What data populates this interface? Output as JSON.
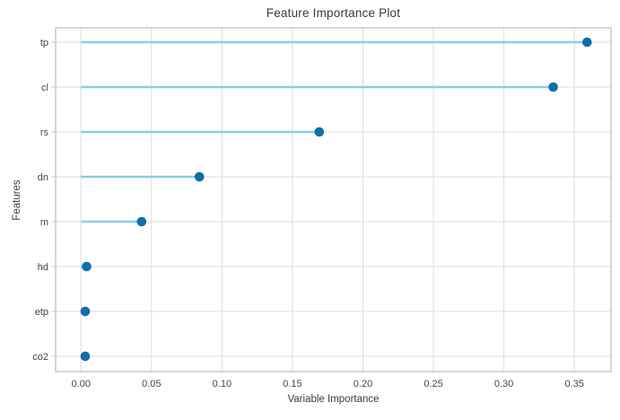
{
  "figure": {
    "background": "#ffffff"
  },
  "chart_data": {
    "type": "scatter",
    "variant": "horizontal-lollipop",
    "title": "Feature Importance Plot",
    "xlabel": "Variable Importance",
    "ylabel": "Features",
    "categories": [
      "tp",
      "cl",
      "rs",
      "dn",
      "m",
      "hd",
      "etp",
      "co2"
    ],
    "values": [
      0.359,
      0.335,
      0.169,
      0.084,
      0.043,
      0.004,
      0.003,
      0.003
    ],
    "stem_start": 0,
    "xticks": [
      0.0,
      0.05,
      0.1,
      0.15,
      0.2,
      0.25,
      0.3,
      0.35
    ],
    "xtick_labels": [
      "0.00",
      "0.05",
      "0.10",
      "0.15",
      "0.20",
      "0.25",
      "0.30",
      "0.35"
    ],
    "xlim": [
      -0.018,
      0.376
    ],
    "grid": true,
    "legend_position": "none",
    "colors": {
      "stem": "#87ceeb",
      "dot": "#0f6fa6",
      "grid": "#dcdcdc",
      "spine": "#c6c6c6",
      "tick_text": "#454545",
      "title_text": "#3a3a3a"
    }
  }
}
